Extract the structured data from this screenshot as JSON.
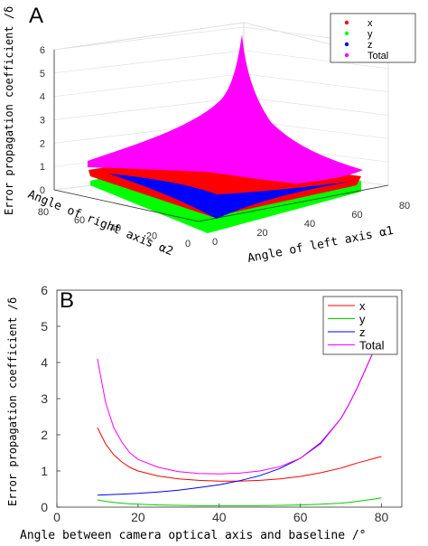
{
  "chart_data": [
    {
      "panel": "A",
      "type": "surface3d",
      "zlabel": "Error propagation coefficient /δ",
      "xlabel": "Angle of left axis α1",
      "ylabel": "Angle of right axis α2",
      "x_ticks": [
        "0",
        "20",
        "40",
        "60",
        "80"
      ],
      "y_ticks": [
        "0",
        "20",
        "40",
        "60",
        "80"
      ],
      "z_ticks": [
        "0",
        "1",
        "2",
        "3",
        "4",
        "5",
        "6"
      ],
      "xlim": [
        0,
        80
      ],
      "ylim": [
        0,
        80
      ],
      "zlim": [
        0,
        6
      ],
      "grid": true,
      "legend": {
        "placement": "top-right",
        "entries": [
          {
            "name": "x",
            "color": "#ff0000"
          },
          {
            "name": "y",
            "color": "#00ff00"
          },
          {
            "name": "z",
            "color": "#0000ff"
          },
          {
            "name": "Total",
            "color": "#ff00ff"
          }
        ]
      },
      "series": [
        {
          "name": "x",
          "color": "#ff0000",
          "corner_values": {
            "min": 0.5,
            "max": 1.4
          }
        },
        {
          "name": "y",
          "color": "#00ff00",
          "corner_values": {
            "min": 0.05,
            "max": 0.3
          }
        },
        {
          "name": "z",
          "color": "#0000ff",
          "corner_values": {
            "min": -0.5,
            "max": 1.0
          }
        },
        {
          "name": "Total",
          "color": "#ff00ff",
          "corner_values": {
            "min": 0.9,
            "max": 6.0
          }
        }
      ]
    },
    {
      "panel": "B",
      "type": "line",
      "xlabel": "Angle between camera optical axis and baseline /°",
      "ylabel": "Error propagation coefficient /δ",
      "xlim": [
        0,
        85
      ],
      "ylim": [
        0,
        6
      ],
      "x_ticks": [
        0,
        20,
        40,
        60,
        80
      ],
      "y_ticks": [
        0,
        1,
        2,
        3,
        4,
        5,
        6
      ],
      "grid": false,
      "legend": {
        "placement": "top-right"
      },
      "x": [
        10,
        12,
        14,
        16,
        18,
        20,
        25,
        30,
        35,
        40,
        45,
        50,
        55,
        60,
        65,
        70,
        72,
        74,
        76,
        78,
        80
      ],
      "series": [
        {
          "name": "x",
          "color": "#ff0000",
          "values": [
            2.2,
            1.75,
            1.45,
            1.25,
            1.1,
            1.0,
            0.86,
            0.78,
            0.74,
            0.72,
            0.72,
            0.74,
            0.78,
            0.85,
            0.95,
            1.08,
            1.15,
            1.22,
            1.28,
            1.34,
            1.4
          ]
        },
        {
          "name": "y",
          "color": "#00cc00",
          "values": [
            0.2,
            0.16,
            0.13,
            0.11,
            0.09,
            0.08,
            0.06,
            0.05,
            0.04,
            0.04,
            0.04,
            0.04,
            0.05,
            0.06,
            0.08,
            0.11,
            0.13,
            0.16,
            0.19,
            0.22,
            0.26
          ]
        },
        {
          "name": "z",
          "color": "#0000ff",
          "values": [
            0.33,
            0.34,
            0.35,
            0.36,
            0.37,
            0.38,
            0.42,
            0.47,
            0.54,
            0.62,
            0.73,
            0.87,
            1.07,
            1.35,
            1.78,
            2.45,
            2.85,
            3.3,
            3.8,
            4.3,
            4.8
          ]
        },
        {
          "name": "Total",
          "color": "#ff00ff",
          "values": [
            4.1,
            2.9,
            2.2,
            1.8,
            1.5,
            1.32,
            1.1,
            0.98,
            0.93,
            0.92,
            0.94,
            1.0,
            1.12,
            1.35,
            1.75,
            2.45,
            2.85,
            3.3,
            3.8,
            4.3,
            4.8
          ]
        }
      ]
    }
  ]
}
